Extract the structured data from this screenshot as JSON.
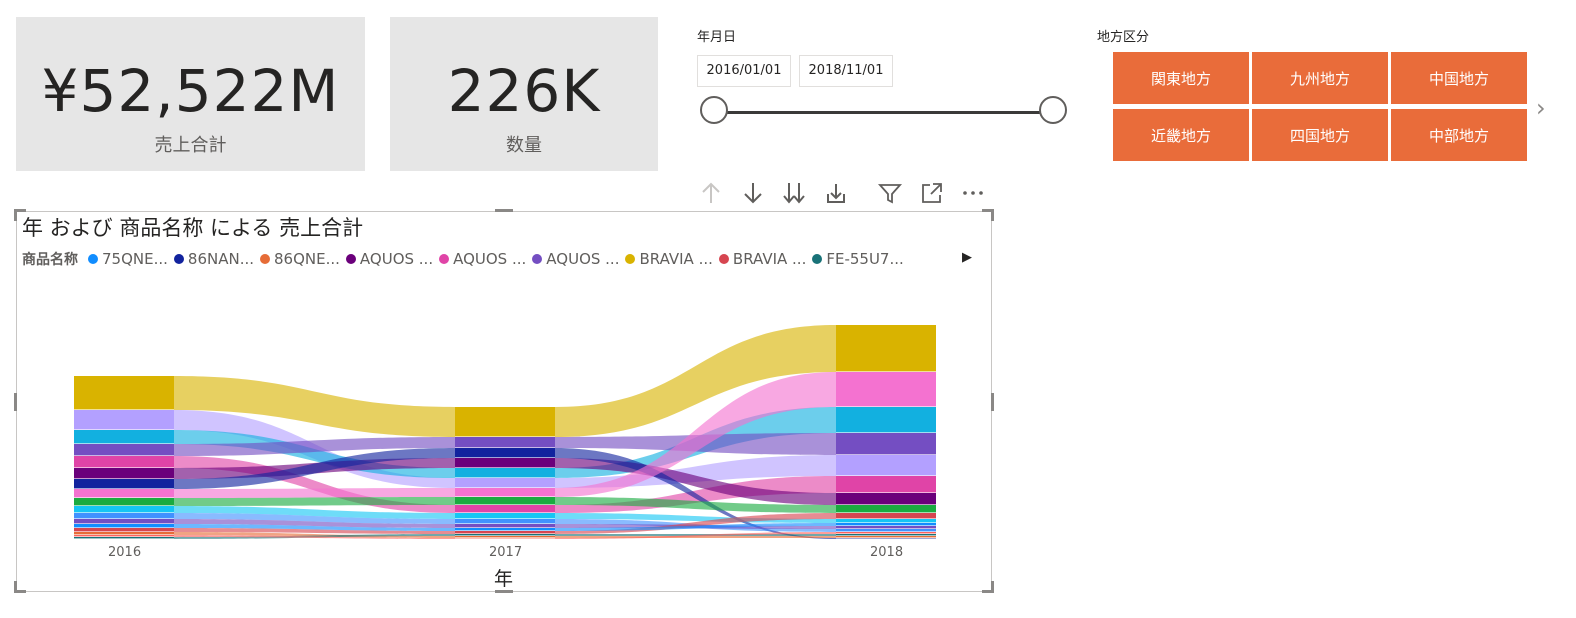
{
  "cards": [
    {
      "value": "¥52,522M",
      "label": "売上合計"
    },
    {
      "value": "226K",
      "label": "数量"
    }
  ],
  "date_slicer": {
    "title": "年月日",
    "start": "2016/01/01",
    "end": "2018/11/01"
  },
  "region_slicer": {
    "title": "地方区分",
    "buttons": [
      "関東地方",
      "九州地方",
      "中国地方",
      "近畿地方",
      "四国地方",
      "中部地方"
    ],
    "next_icon": "chevron-right-icon"
  },
  "toolbar": {
    "icons": [
      "arrow-up-icon",
      "arrow-down-icon",
      "double-arrow-down-icon",
      "expand-hierarchy-icon",
      "filter-icon",
      "focus-mode-icon",
      "more-options-icon"
    ]
  },
  "chart_data": {
    "type": "area",
    "subtype": "ribbon",
    "title": "年 および 商品名称 による 売上合計",
    "legend_title": "商品名称",
    "legend_position": "top",
    "legend": [
      {
        "name": "75QNE...",
        "color": "#118dff"
      },
      {
        "name": "86NAN...",
        "color": "#12239e"
      },
      {
        "name": "86QNE...",
        "color": "#e66c37"
      },
      {
        "name": "AQUOS ...",
        "color": "#6b007b"
      },
      {
        "name": "AQUOS ...",
        "color": "#e044a7"
      },
      {
        "name": "AQUOS ...",
        "color": "#744ec2"
      },
      {
        "name": "BRAVIA ...",
        "color": "#d9b300"
      },
      {
        "name": "BRAVIA ...",
        "color": "#d64550"
      },
      {
        "name": "FE-55U7...",
        "color": "#197278"
      }
    ],
    "categories": [
      "2016",
      "2017",
      "2018"
    ],
    "xlabel": "年",
    "ylabel": "",
    "series": [
      {
        "color": "#d9b300",
        "values": [
          34,
          30,
          47
        ]
      },
      {
        "color": "#b3a0ff",
        "values": [
          20,
          10,
          21
        ]
      },
      {
        "color": "#12b0e0",
        "values": [
          14,
          10,
          26
        ]
      },
      {
        "color": "#e044a7",
        "values": [
          12,
          8,
          17
        ]
      },
      {
        "color": "#744ec2",
        "values": [
          12,
          11,
          22
        ]
      },
      {
        "color": "#6b007b",
        "values": [
          11,
          10,
          12
        ]
      },
      {
        "color": "#12239e",
        "values": [
          10,
          10,
          1
        ]
      },
      {
        "color": "#f472d0",
        "values": [
          9,
          9,
          35
        ]
      },
      {
        "color": "#1aab40",
        "values": [
          8,
          8,
          8
        ]
      },
      {
        "color": "#15c6f4",
        "values": [
          7,
          6,
          4
        ]
      },
      {
        "color": "#4092ff",
        "values": [
          6,
          5,
          3
        ]
      },
      {
        "color": "#744ec2",
        "values": [
          5,
          4,
          3
        ]
      },
      {
        "color": "#d64550",
        "values": [
          4,
          3,
          6
        ]
      },
      {
        "color": "#118dff",
        "values": [
          4,
          3,
          3
        ]
      },
      {
        "color": "#e66c37",
        "values": [
          3,
          2,
          2
        ]
      },
      {
        "color": "#197278",
        "values": [
          2,
          2,
          2
        ]
      },
      {
        "color": "#fd625e",
        "values": [
          2,
          1,
          2
        ]
      }
    ]
  }
}
